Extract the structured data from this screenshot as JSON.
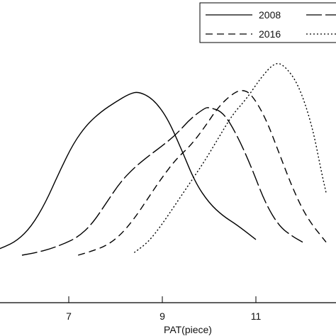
{
  "chart_data": {
    "type": "line",
    "xlabel": "PAT(piece)",
    "ylabel": "",
    "xlim": [
      5.0,
      12.5
    ],
    "ylim": [
      -0.02,
      0.42
    ],
    "x_ticks": [
      "7",
      "9",
      "11"
    ],
    "grid": false,
    "legend_position": "top-right",
    "series": [
      {
        "name": "2008",
        "dash": "solid",
        "points": [
          [
            5.0,
            0.0
          ],
          [
            5.3,
            0.005
          ],
          [
            5.6,
            0.015
          ],
          [
            5.9,
            0.028
          ],
          [
            6.2,
            0.055
          ],
          [
            6.5,
            0.1
          ],
          [
            6.8,
            0.16
          ],
          [
            7.1,
            0.215
          ],
          [
            7.4,
            0.252
          ],
          [
            7.7,
            0.276
          ],
          [
            8.0,
            0.294
          ],
          [
            8.3,
            0.31
          ],
          [
            8.5,
            0.314
          ],
          [
            8.8,
            0.3
          ],
          [
            9.1,
            0.265
          ],
          [
            9.4,
            0.205
          ],
          [
            9.7,
            0.14
          ],
          [
            10.0,
            0.1
          ],
          [
            10.3,
            0.075
          ],
          [
            10.6,
            0.058
          ],
          [
            11.0,
            0.03
          ]
        ]
      },
      {
        "name": "",
        "dash": "long-dash",
        "points": [
          [
            6.0,
            0.0
          ],
          [
            6.3,
            0.005
          ],
          [
            6.6,
            0.012
          ],
          [
            6.9,
            0.022
          ],
          [
            7.2,
            0.035
          ],
          [
            7.5,
            0.06
          ],
          [
            7.8,
            0.1
          ],
          [
            8.1,
            0.14
          ],
          [
            8.4,
            0.168
          ],
          [
            8.7,
            0.19
          ],
          [
            9.0,
            0.21
          ],
          [
            9.3,
            0.232
          ],
          [
            9.6,
            0.262
          ],
          [
            9.9,
            0.282
          ],
          [
            10.0,
            0.284
          ],
          [
            10.3,
            0.275
          ],
          [
            10.6,
            0.23
          ],
          [
            10.9,
            0.17
          ],
          [
            11.2,
            0.1
          ],
          [
            11.5,
            0.055
          ],
          [
            11.8,
            0.035
          ],
          [
            12.0,
            0.025
          ]
        ]
      },
      {
        "name": "2016",
        "dash": "dash",
        "points": [
          [
            7.2,
            0.0
          ],
          [
            7.5,
            0.008
          ],
          [
            7.8,
            0.018
          ],
          [
            8.1,
            0.038
          ],
          [
            8.4,
            0.07
          ],
          [
            8.7,
            0.11
          ],
          [
            9.0,
            0.15
          ],
          [
            9.3,
            0.185
          ],
          [
            9.6,
            0.21
          ],
          [
            9.9,
            0.245
          ],
          [
            10.2,
            0.285
          ],
          [
            10.5,
            0.31
          ],
          [
            10.7,
            0.318
          ],
          [
            10.9,
            0.31
          ],
          [
            11.2,
            0.265
          ],
          [
            11.5,
            0.195
          ],
          [
            11.8,
            0.125
          ],
          [
            12.1,
            0.07
          ],
          [
            12.5,
            0.025
          ]
        ]
      },
      {
        "name": "",
        "dash": "dot",
        "points": [
          [
            8.4,
            0.005
          ],
          [
            8.7,
            0.025
          ],
          [
            9.0,
            0.06
          ],
          [
            9.3,
            0.1
          ],
          [
            9.6,
            0.14
          ],
          [
            9.9,
            0.18
          ],
          [
            10.2,
            0.225
          ],
          [
            10.5,
            0.27
          ],
          [
            10.8,
            0.3
          ],
          [
            11.1,
            0.34
          ],
          [
            11.4,
            0.37
          ],
          [
            11.6,
            0.365
          ],
          [
            11.9,
            0.33
          ],
          [
            12.2,
            0.25
          ],
          [
            12.4,
            0.16
          ],
          [
            12.5,
            0.12
          ]
        ]
      }
    ],
    "legend": [
      {
        "label": "2008",
        "dash": "solid"
      },
      {
        "label": "2016",
        "dash": "dash"
      },
      {
        "label": "",
        "dash": "long-dash"
      },
      {
        "label": "",
        "dash": "dot"
      }
    ]
  },
  "colors": {
    "line": "#000000",
    "axis": "#000000",
    "background": "#ffffff"
  }
}
